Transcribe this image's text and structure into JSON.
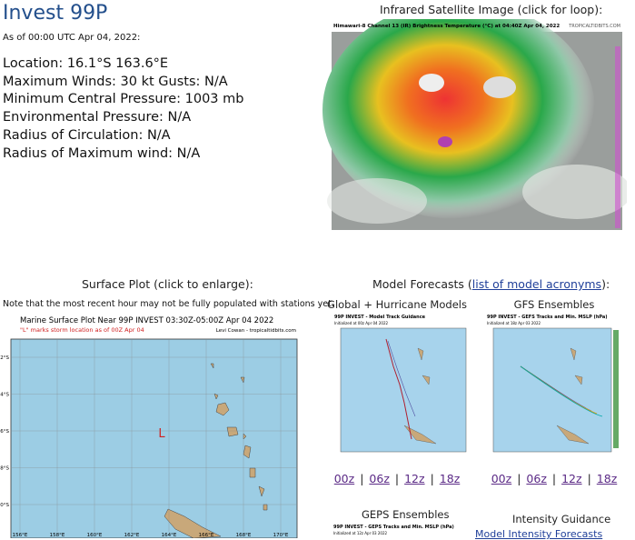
{
  "header": {
    "title": "Invest 99P",
    "as_of": "As of 00:00 UTC Apr 04, 2022:"
  },
  "info": [
    "Location: 16.1°S 163.6°E",
    "Maximum Winds: 30 kt  Gusts: N/A",
    "Minimum Central Pressure: 1003 mb",
    "Environmental Pressure: N/A",
    "Radius of Circulation: N/A",
    "Radius of Maximum wind: N/A"
  ],
  "satellite": {
    "heading": "Infrared Satellite Image (click for loop):",
    "image_title": "Himawari-8 Channel 13 (IR) Brightness Temperature (°C) at 04:40Z Apr 04, 2022",
    "credit": "TROPICALTIDBITS.COM"
  },
  "surface": {
    "heading": "Surface Plot (click to enlarge):",
    "note": "Note that the most recent hour may not be fully populated with stations yet.",
    "map_title": "Marine Surface Plot Near 99P INVEST 03:30Z-05:00Z Apr 04 2022",
    "map_subtitle": "\"L\" marks storm location as of 00Z Apr 04",
    "credit": "Levi Cowan - tropicaltidbits.com",
    "storm_marker": "L",
    "lat_labels": [
      "12°S",
      "14°S",
      "16°S",
      "18°S",
      "20°S"
    ],
    "lon_labels": [
      "156°E",
      "158°E",
      "160°E",
      "162°E",
      "164°E",
      "166°E",
      "168°E",
      "170°E"
    ]
  },
  "models": {
    "heading_prefix": "Model Forecasts (",
    "heading_link": "list of model acronyms",
    "heading_suffix": "):",
    "separator": "|",
    "panels": [
      {
        "title": "Global + Hurricane Models",
        "image_title": "99P INVEST - Model Track Guidance",
        "image_subtitle": "Initialized at 00z Apr 04 2022",
        "links": [
          "00z",
          "06z",
          "12z",
          "18z"
        ]
      },
      {
        "title": "GFS Ensembles",
        "image_title": "99P INVEST - GEFS Tracks and Min. MSLP (hPa)",
        "image_subtitle": "Initialized at 18z Apr 03 2022",
        "links": [
          "00z",
          "06z",
          "12z",
          "18z"
        ]
      }
    ],
    "geps": {
      "title": "GEPS Ensembles",
      "image_title": "99P INVEST - GEPS Tracks and Min. MSLP (hPa)",
      "image_subtitle": "Initialized at 12z Apr 03 2022"
    },
    "intensity": {
      "title": "Intensity Guidance",
      "link": "Model Intensity Forecasts"
    }
  }
}
